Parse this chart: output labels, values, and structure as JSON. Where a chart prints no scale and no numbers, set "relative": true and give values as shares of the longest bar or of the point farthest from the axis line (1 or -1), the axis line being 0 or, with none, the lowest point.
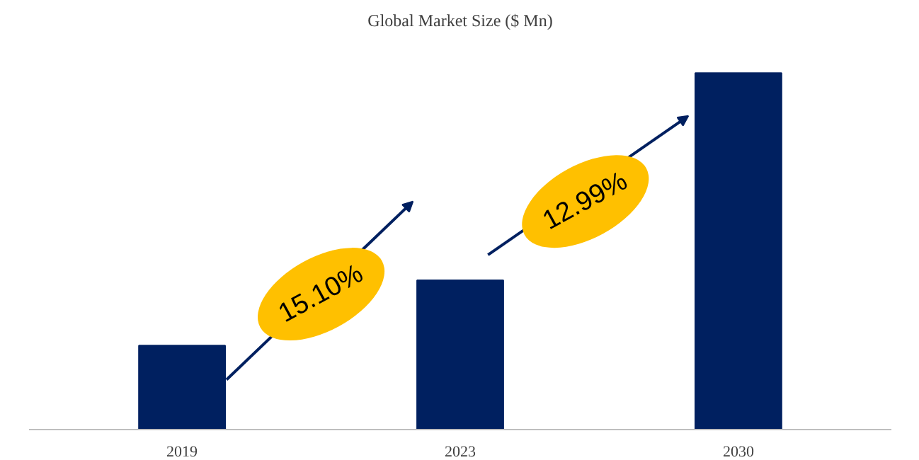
{
  "chart_data": {
    "type": "bar",
    "title": "Global Market Size ($ Mn)",
    "categories": [
      "2019",
      "2023",
      "2030"
    ],
    "values": [
      0.236,
      0.419,
      1
    ],
    "color": "#002060",
    "relative": true,
    "grid": false,
    "annotations": [
      "15.10%",
      "12.99%"
    ]
  }
}
